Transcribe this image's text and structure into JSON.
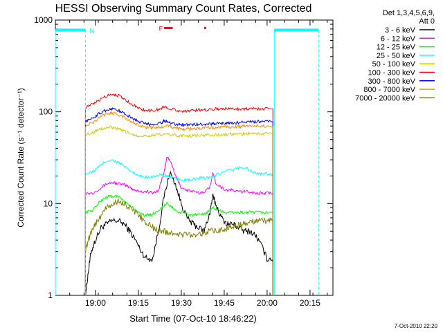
{
  "chart_data": {
    "type": "line",
    "title": "HESSI Observing Summary Count Rates, Corrected",
    "xlabel": "Start Time (07-Oct-10 18:46:22)",
    "ylabel": "Corrected Count Rate (s⁻¹ detector⁻¹)",
    "x_ticks": [
      "19:00",
      "19:15",
      "19:30",
      "19:45",
      "20:00",
      "20:15"
    ],
    "x_tick_minutes": [
      14,
      29,
      44,
      59,
      74,
      89
    ],
    "xlim_minutes_after_start": [
      0,
      97
    ],
    "y_scale": "log",
    "ylim": [
      1,
      1000
    ],
    "y_ticks": [
      1,
      10,
      100,
      1000
    ],
    "y_tick_labels": [
      "1",
      "10",
      "100",
      "1000"
    ],
    "legend": {
      "placement": "outside-right",
      "header": [
        "Det 1,3,4,5,6,9,",
        "Att 0"
      ]
    },
    "series": [
      {
        "name": "3 - 6 keV",
        "color": "#000000",
        "points": [
          [
            10.5,
            1
          ],
          [
            11.5,
            1.8
          ],
          [
            12.5,
            3
          ],
          [
            14,
            4
          ],
          [
            16,
            5.5
          ],
          [
            18,
            6
          ],
          [
            20,
            6.5
          ],
          [
            22,
            6.5
          ],
          [
            24,
            6
          ],
          [
            26,
            5
          ],
          [
            28,
            4
          ],
          [
            30,
            3
          ],
          [
            32,
            2.5
          ],
          [
            34,
            2.5
          ],
          [
            36,
            5
          ],
          [
            38,
            12
          ],
          [
            40,
            22
          ],
          [
            42,
            16
          ],
          [
            44,
            10
          ],
          [
            46,
            7
          ],
          [
            48,
            6
          ],
          [
            50,
            5.5
          ],
          [
            52,
            5
          ],
          [
            54,
            8
          ],
          [
            55,
            12
          ],
          [
            56,
            10
          ],
          [
            58,
            7
          ],
          [
            60,
            6
          ],
          [
            62,
            6
          ],
          [
            64,
            5.5
          ],
          [
            66,
            5
          ],
          [
            68,
            5
          ],
          [
            70,
            4.5
          ],
          [
            72,
            3.5
          ],
          [
            74,
            2.5
          ],
          [
            76,
            2.5
          ]
        ]
      },
      {
        "name": "6 - 12 keV",
        "color": "#ff00ff",
        "points": [
          [
            10.5,
            13
          ],
          [
            13,
            13
          ],
          [
            16,
            15
          ],
          [
            18,
            16.5
          ],
          [
            20,
            17
          ],
          [
            22,
            16.5
          ],
          [
            24,
            16
          ],
          [
            26,
            15
          ],
          [
            28,
            14
          ],
          [
            30,
            13.5
          ],
          [
            32,
            13.5
          ],
          [
            34,
            13
          ],
          [
            36,
            14
          ],
          [
            38,
            22
          ],
          [
            39,
            32
          ],
          [
            40,
            30
          ],
          [
            42,
            20
          ],
          [
            44,
            15
          ],
          [
            46,
            14
          ],
          [
            48,
            13.5
          ],
          [
            50,
            13
          ],
          [
            52,
            13.5
          ],
          [
            54,
            15
          ],
          [
            55,
            22
          ],
          [
            56,
            17
          ],
          [
            58,
            15
          ],
          [
            60,
            14
          ],
          [
            62,
            14
          ],
          [
            64,
            13.5
          ],
          [
            66,
            13.5
          ],
          [
            68,
            13.5
          ],
          [
            70,
            13
          ],
          [
            72,
            13
          ],
          [
            74,
            13
          ],
          [
            76,
            13
          ]
        ]
      },
      {
        "name": "12 - 25 keV",
        "color": "#00ff00",
        "points": [
          [
            10.5,
            8
          ],
          [
            13,
            8.5
          ],
          [
            15,
            10
          ],
          [
            17,
            11.5
          ],
          [
            19,
            12
          ],
          [
            21,
            12
          ],
          [
            23,
            11.5
          ],
          [
            25,
            10
          ],
          [
            27,
            9
          ],
          [
            29,
            8
          ],
          [
            31,
            7.5
          ],
          [
            33,
            7.5
          ],
          [
            35,
            8
          ],
          [
            37,
            9
          ],
          [
            39,
            10
          ],
          [
            41,
            9
          ],
          [
            43,
            8
          ],
          [
            45,
            8
          ],
          [
            47,
            7.5
          ],
          [
            49,
            7.5
          ],
          [
            51,
            7.5
          ],
          [
            53,
            8
          ],
          [
            55,
            9
          ],
          [
            57,
            8.5
          ],
          [
            59,
            8
          ],
          [
            61,
            8
          ],
          [
            63,
            8
          ],
          [
            65,
            8
          ],
          [
            67,
            8
          ],
          [
            69,
            8
          ],
          [
            71,
            8
          ],
          [
            73,
            8
          ],
          [
            76,
            8
          ]
        ]
      },
      {
        "name": "25 - 50 keV",
        "color": "#00ffff",
        "points": [
          [
            10.5,
            21
          ],
          [
            13,
            22
          ],
          [
            15,
            25
          ],
          [
            17,
            28
          ],
          [
            19,
            30
          ],
          [
            21,
            29
          ],
          [
            23,
            27
          ],
          [
            25,
            24
          ],
          [
            27,
            22
          ],
          [
            29,
            20
          ],
          [
            31,
            19.5
          ],
          [
            33,
            19.5
          ],
          [
            35,
            20
          ],
          [
            37,
            20.5
          ],
          [
            39,
            20
          ],
          [
            41,
            19
          ],
          [
            43,
            18.5
          ],
          [
            45,
            18
          ],
          [
            47,
            18
          ],
          [
            49,
            18.5
          ],
          [
            51,
            19
          ],
          [
            53,
            19
          ],
          [
            55,
            20
          ],
          [
            57,
            21
          ],
          [
            59,
            22
          ],
          [
            61,
            23
          ],
          [
            63,
            24
          ],
          [
            65,
            25
          ],
          [
            67,
            24
          ],
          [
            69,
            22
          ],
          [
            71,
            21
          ],
          [
            73,
            21
          ],
          [
            76,
            21
          ]
        ]
      },
      {
        "name": "50 - 100 keV",
        "color": "#cccc00",
        "points": [
          [
            10.5,
            56
          ],
          [
            13,
            60
          ],
          [
            15,
            64
          ],
          [
            17,
            66
          ],
          [
            19,
            68
          ],
          [
            21,
            66
          ],
          [
            23,
            63
          ],
          [
            25,
            60
          ],
          [
            27,
            57
          ],
          [
            29,
            55
          ],
          [
            31,
            55
          ],
          [
            33,
            55
          ],
          [
            35,
            56
          ],
          [
            37,
            56
          ],
          [
            39,
            57
          ],
          [
            41,
            56
          ],
          [
            43,
            55
          ],
          [
            45,
            55
          ],
          [
            47,
            55
          ],
          [
            49,
            55
          ],
          [
            51,
            55
          ],
          [
            53,
            56
          ],
          [
            55,
            56
          ],
          [
            57,
            56
          ],
          [
            59,
            56
          ],
          [
            61,
            57
          ],
          [
            63,
            57
          ],
          [
            65,
            57
          ],
          [
            67,
            58
          ],
          [
            69,
            58
          ],
          [
            71,
            58
          ],
          [
            73,
            58
          ],
          [
            76,
            58
          ]
        ]
      },
      {
        "name": "100 - 300 keV",
        "color": "#ff0000",
        "points": [
          [
            10.5,
            112
          ],
          [
            13,
            120
          ],
          [
            15,
            132
          ],
          [
            17,
            145
          ],
          [
            19,
            155
          ],
          [
            21,
            155
          ],
          [
            23,
            145
          ],
          [
            25,
            132
          ],
          [
            27,
            120
          ],
          [
            29,
            110
          ],
          [
            31,
            105
          ],
          [
            33,
            103
          ],
          [
            35,
            104
          ],
          [
            37,
            108
          ],
          [
            38,
            115
          ],
          [
            39,
            112
          ],
          [
            41,
            106
          ],
          [
            43,
            103
          ],
          [
            45,
            102
          ],
          [
            47,
            103
          ],
          [
            49,
            104
          ],
          [
            51,
            105
          ],
          [
            53,
            106
          ],
          [
            55,
            107
          ],
          [
            57,
            108
          ],
          [
            59,
            108
          ],
          [
            61,
            108
          ],
          [
            63,
            108
          ],
          [
            65,
            108
          ],
          [
            67,
            108
          ],
          [
            69,
            108
          ],
          [
            71,
            108
          ],
          [
            73,
            108
          ],
          [
            76,
            108
          ]
        ]
      },
      {
        "name": "300 - 800 keV",
        "color": "#0000ff",
        "points": [
          [
            10.5,
            78
          ],
          [
            13,
            85
          ],
          [
            15,
            94
          ],
          [
            17,
            102
          ],
          [
            19,
            108
          ],
          [
            21,
            107
          ],
          [
            23,
            100
          ],
          [
            25,
            92
          ],
          [
            27,
            85
          ],
          [
            29,
            79
          ],
          [
            31,
            75
          ],
          [
            33,
            73
          ],
          [
            35,
            74
          ],
          [
            37,
            76
          ],
          [
            38,
            80
          ],
          [
            39,
            78
          ],
          [
            41,
            75
          ],
          [
            43,
            73
          ],
          [
            45,
            72
          ],
          [
            47,
            72
          ],
          [
            49,
            73
          ],
          [
            51,
            73
          ],
          [
            53,
            74
          ],
          [
            55,
            74
          ],
          [
            57,
            75
          ],
          [
            59,
            75
          ],
          [
            61,
            75
          ],
          [
            63,
            76
          ],
          [
            65,
            77
          ],
          [
            67,
            77
          ],
          [
            69,
            78
          ],
          [
            71,
            78
          ],
          [
            73,
            78
          ],
          [
            76,
            78
          ]
        ]
      },
      {
        "name": "800 - 7000 keV",
        "color": "#ff8800",
        "points": [
          [
            10.5,
            70
          ],
          [
            13,
            76
          ],
          [
            15,
            84
          ],
          [
            17,
            92
          ],
          [
            19,
            97
          ],
          [
            21,
            96
          ],
          [
            23,
            90
          ],
          [
            25,
            83
          ],
          [
            27,
            77
          ],
          [
            29,
            72
          ],
          [
            31,
            68
          ],
          [
            33,
            67
          ],
          [
            35,
            67
          ],
          [
            37,
            69
          ],
          [
            39,
            70
          ],
          [
            41,
            68
          ],
          [
            43,
            66
          ],
          [
            45,
            65
          ],
          [
            47,
            65
          ],
          [
            49,
            66
          ],
          [
            51,
            66
          ],
          [
            53,
            67
          ],
          [
            55,
            67
          ],
          [
            57,
            68
          ],
          [
            59,
            68
          ],
          [
            61,
            68
          ],
          [
            63,
            69
          ],
          [
            65,
            69
          ],
          [
            67,
            70
          ],
          [
            69,
            70
          ],
          [
            71,
            70
          ],
          [
            73,
            70
          ],
          [
            76,
            70
          ]
        ]
      },
      {
        "name": "7000 - 20000 keV",
        "color": "#808000",
        "points": [
          [
            10.5,
            3
          ],
          [
            11.5,
            4
          ],
          [
            12.5,
            5
          ],
          [
            14,
            6
          ],
          [
            16,
            7.5
          ],
          [
            18,
            9
          ],
          [
            20,
            10
          ],
          [
            22,
            10.5
          ],
          [
            24,
            10
          ],
          [
            26,
            9
          ],
          [
            28,
            8
          ],
          [
            30,
            7
          ],
          [
            32,
            6
          ],
          [
            34,
            5.5
          ],
          [
            36,
            5
          ],
          [
            38,
            5
          ],
          [
            40,
            4.8
          ],
          [
            42,
            4.7
          ],
          [
            44,
            4.6
          ],
          [
            46,
            4.6
          ],
          [
            48,
            4.6
          ],
          [
            50,
            4.7
          ],
          [
            52,
            4.8
          ],
          [
            54,
            5
          ],
          [
            56,
            5
          ],
          [
            58,
            5.2
          ],
          [
            60,
            5.4
          ],
          [
            62,
            5.6
          ],
          [
            64,
            5.8
          ],
          [
            66,
            6
          ],
          [
            68,
            6.2
          ],
          [
            70,
            6.4
          ],
          [
            72,
            6.5
          ],
          [
            74,
            6.5
          ],
          [
            76,
            6.5
          ]
        ]
      }
    ],
    "annotations": {
      "night_label": "N",
      "flare_label": "F",
      "attenuator_bars": [
        {
          "color": "#00ffff",
          "x_start": 0,
          "x_end": 10.5,
          "value": 780
        },
        {
          "color": "#00ffff",
          "x_start": 76.5,
          "x_end": 92,
          "value": 780
        }
      ],
      "flare_bars": [
        {
          "color": "#ff0000",
          "x_start": 38,
          "x_end": 41,
          "value": 820
        },
        {
          "color": "#ff0000",
          "x_start": 52,
          "x_end": 52.7,
          "value": 820
        }
      ]
    }
  },
  "footer_timestamp": "7-Oct-2010 22:20"
}
